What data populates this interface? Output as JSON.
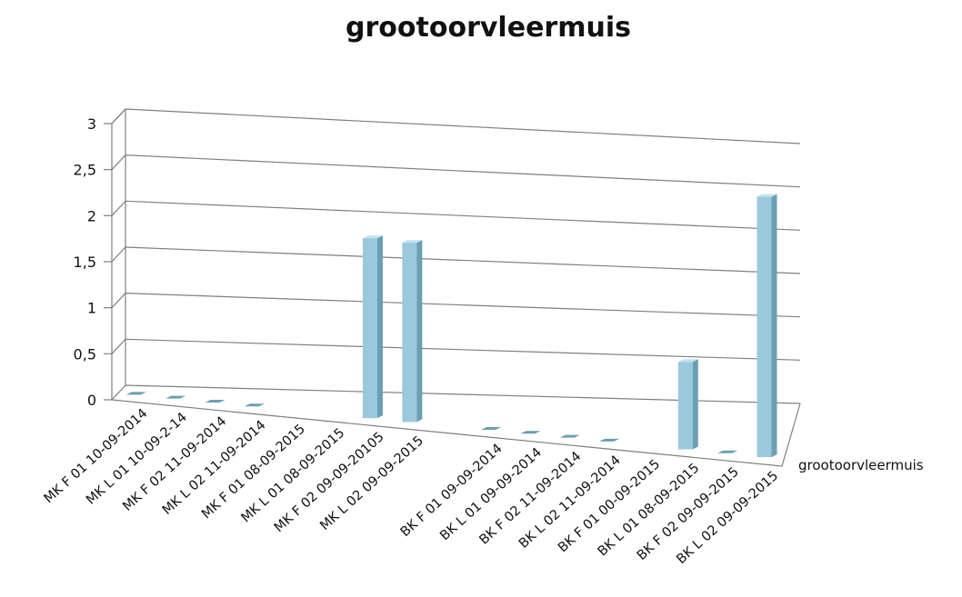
{
  "chart_data": {
    "type": "bar",
    "title": "grootoorvleermuis",
    "xlabel": "",
    "ylabel": "",
    "ylim": [
      0,
      3
    ],
    "yticks": [
      "0",
      "0,5",
      "1",
      "1,5",
      "2",
      "2,5",
      "3"
    ],
    "grid": true,
    "categories": [
      "MK F 01 10-09-2014",
      "MK L 01 10-09-2-14",
      "MK F 02 11-09-2014",
      "MK L 02 11-09-2014",
      "MK F 01 08-09-2015",
      "MK L 01 08-09-2015",
      "MK F 02 09-09-20105",
      "MK L 02 09-09-2015",
      "",
      "BK F 01 09-09-2014",
      "BK L 01 09-09-2014",
      "BK F 02 11-09-2014",
      "BK L 02 11-09-2014",
      "BK F 01 00-09-2015",
      "BK L 01 08-09-2015",
      "BK F 02 09-09-2015",
      "BK L 02 09-09-2015"
    ],
    "series": [
      {
        "name": "grootoorvleermuis",
        "values": [
          0,
          0,
          0,
          0,
          null,
          null,
          2,
          2,
          null,
          0,
          0,
          0,
          0,
          null,
          1,
          0,
          3
        ]
      }
    ],
    "colors": {
      "bar_front": "#9ac9dc",
      "bar_side": "#6a9fb4",
      "bar_top": "#c2e2ef"
    }
  }
}
